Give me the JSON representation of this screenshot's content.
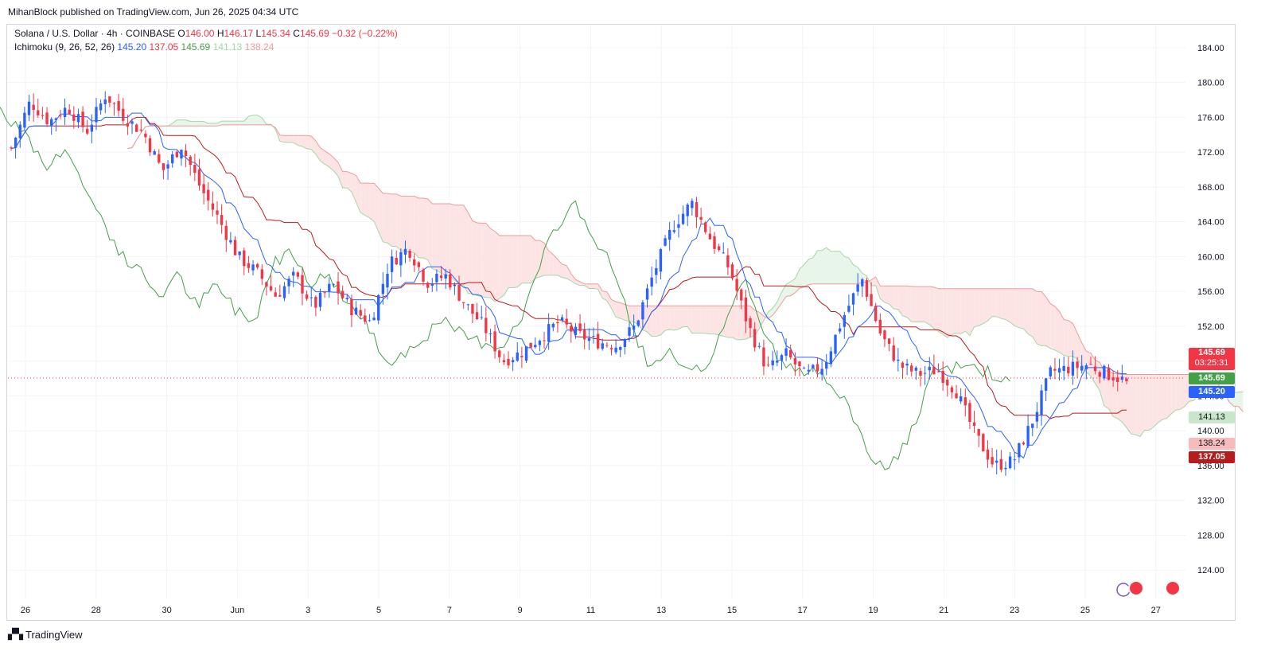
{
  "header": {
    "publisher": "MihanBlock published on TradingView.com, Jun 26, 2025 04:34 UTC"
  },
  "legend": {
    "symbol": "Solana / U.S. Dollar · 4h · COINBASE",
    "open_label": "O",
    "open": "146.00",
    "high_label": "H",
    "high": "146.17",
    "low_label": "L",
    "low": "145.34",
    "close_label": "C",
    "close": "145.69",
    "change": "−0.32 (−0.22%)",
    "indicator_name": "Ichimoku (9, 26, 52, 26)",
    "conversion": "145.20",
    "base": "137.05",
    "lagging": "145.69",
    "span_a": "141.13",
    "span_b": "138.24"
  },
  "price_tags": {
    "last_price": "145.69",
    "countdown": "03:25:31",
    "lagging": "145.69",
    "conversion": "145.20",
    "span_a": "141.13",
    "span_b": "138.24",
    "base": "137.05"
  },
  "footer": {
    "brand": "TradingView"
  },
  "colors": {
    "up": "#2962ff",
    "down": "#f23645",
    "conversion_line": "#2962ff",
    "base_line": "#b71c1c",
    "lagging_span": "#43a047",
    "cloud_bull": "#e8f5e9",
    "cloud_bear": "#fde4e4"
  },
  "chart_data": {
    "type": "line",
    "title": "Solana / U.S. Dollar · 4h · COINBASE",
    "ylim": [
      122,
      186
    ],
    "y_ticks": [
      124,
      128,
      132,
      136,
      140,
      144,
      148,
      152,
      156,
      160,
      164,
      168,
      172,
      176,
      180,
      184
    ],
    "y_tick_labels": [
      "124.00",
      "128.00",
      "132.00",
      "136.00",
      "140.00",
      "144.00",
      "148.00",
      "152.00",
      "156.00",
      "160.00",
      "164.00",
      "168.00",
      "172.00",
      "176.00",
      "180.00",
      "184.00"
    ],
    "x_tick_labels": [
      "26",
      "28",
      "30",
      "Jun",
      "3",
      "5",
      "7",
      "9",
      "11",
      "13",
      "15",
      "17",
      "19",
      "21",
      "23",
      "25",
      "27"
    ],
    "grid": true,
    "series": [
      {
        "name": "Ichimoku (9, 26, 52, 26)",
        "values": []
      }
    ],
    "date_anchors": [
      {
        "label": "26",
        "x": 0
      },
      {
        "label": "27",
        "x": 32
      }
    ],
    "close_path": [
      {
        "x": 0,
        "y": 172.5
      },
      {
        "x": 0.6,
        "y": 177.8
      },
      {
        "x": 1.2,
        "y": 175.5
      },
      {
        "x": 1.8,
        "y": 177.2
      },
      {
        "x": 2.4,
        "y": 174.4
      },
      {
        "x": 3.0,
        "y": 178.6
      },
      {
        "x": 3.6,
        "y": 176.0
      },
      {
        "x": 4.2,
        "y": 174.2
      },
      {
        "x": 4.8,
        "y": 169.8
      },
      {
        "x": 5.4,
        "y": 172.8
      },
      {
        "x": 6.0,
        "y": 168.0
      },
      {
        "x": 6.6,
        "y": 164.2
      },
      {
        "x": 7.2,
        "y": 160.0
      },
      {
        "x": 7.8,
        "y": 158.2
      },
      {
        "x": 8.4,
        "y": 155.5
      },
      {
        "x": 9.0,
        "y": 157.8
      },
      {
        "x": 9.6,
        "y": 154.2
      },
      {
        "x": 10.2,
        "y": 156.8
      },
      {
        "x": 10.8,
        "y": 154.0
      },
      {
        "x": 11.4,
        "y": 152.5
      },
      {
        "x": 12.0,
        "y": 159.2
      },
      {
        "x": 12.6,
        "y": 161.0
      },
      {
        "x": 13.2,
        "y": 157.0
      },
      {
        "x": 13.8,
        "y": 157.8
      },
      {
        "x": 14.4,
        "y": 154.6
      },
      {
        "x": 15.0,
        "y": 152.0
      },
      {
        "x": 15.6,
        "y": 148.0
      },
      {
        "x": 16.2,
        "y": 149.0
      },
      {
        "x": 16.8,
        "y": 150.8
      },
      {
        "x": 17.4,
        "y": 152.5
      },
      {
        "x": 18.0,
        "y": 151.0
      },
      {
        "x": 18.6,
        "y": 150.2
      },
      {
        "x": 19.2,
        "y": 149.8
      },
      {
        "x": 19.8,
        "y": 152.0
      },
      {
        "x": 20.4,
        "y": 158.2
      },
      {
        "x": 21.0,
        "y": 163.5
      },
      {
        "x": 21.6,
        "y": 166.2
      },
      {
        "x": 22.2,
        "y": 162.0
      },
      {
        "x": 22.8,
        "y": 158.6
      },
      {
        "x": 23.4,
        "y": 152.0
      },
      {
        "x": 24.0,
        "y": 147.0
      },
      {
        "x": 24.6,
        "y": 148.8
      },
      {
        "x": 25.2,
        "y": 146.3
      },
      {
        "x": 25.8,
        "y": 147.6
      },
      {
        "x": 26.4,
        "y": 153.0
      },
      {
        "x": 27.0,
        "y": 157.5
      },
      {
        "x": 27.6,
        "y": 151.0
      },
      {
        "x": 28.2,
        "y": 147.5
      },
      {
        "x": 28.8,
        "y": 146.5
      },
      {
        "x": 29.4,
        "y": 147.0
      },
      {
        "x": 30.0,
        "y": 144.5
      },
      {
        "x": 30.6,
        "y": 139.5
      },
      {
        "x": 31.2,
        "y": 136.0
      },
      {
        "x": 31.8,
        "y": 136.5
      },
      {
        "x": 32.4,
        "y": 141.0
      },
      {
        "x": 33.0,
        "y": 146.8
      },
      {
        "x": 33.6,
        "y": 147.2
      },
      {
        "x": 34.2,
        "y": 147.6
      },
      {
        "x": 34.8,
        "y": 146.5
      },
      {
        "x": 35.4,
        "y": 145.7
      }
    ]
  }
}
